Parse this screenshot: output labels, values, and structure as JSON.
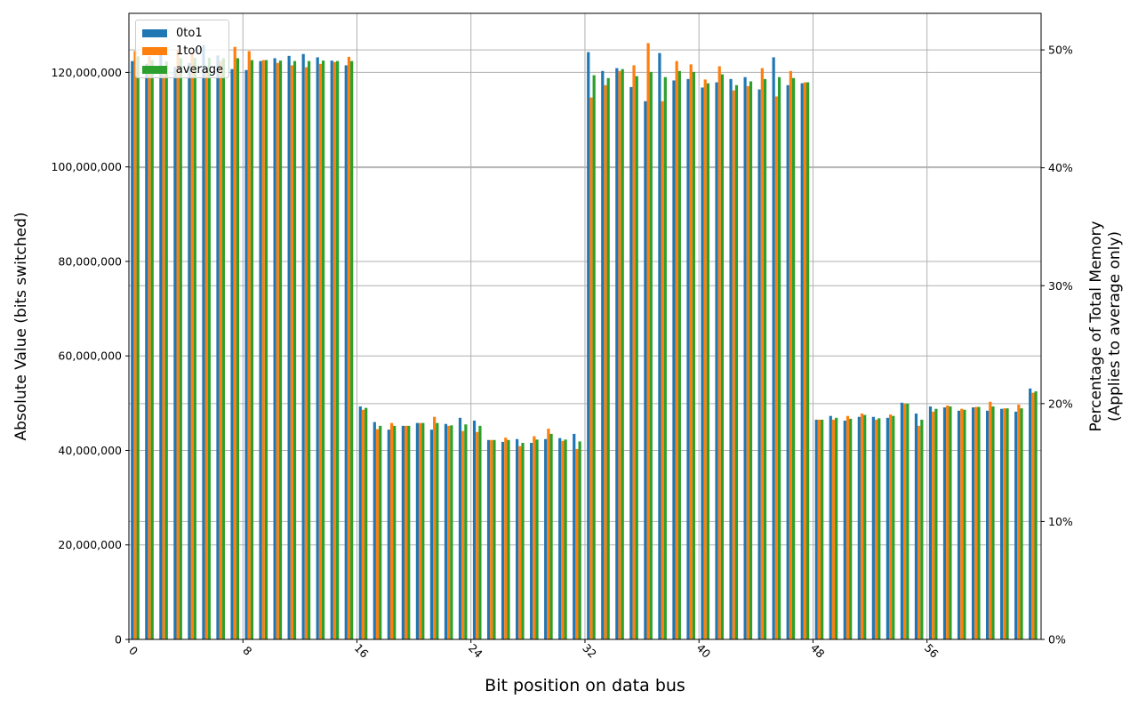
{
  "chart_data": {
    "type": "bar",
    "title": "",
    "xlabel": "Bit position on data bus",
    "ylabel": "Absolute Value (bits switched)",
    "ylabel_right": "Percentage of Total Memory\n(Applies to average only)",
    "ylabel_right_lines": [
      "Percentage of Total Memory",
      "(Applies to average only)"
    ],
    "ylim": [
      0,
      132500000
    ],
    "ylim_right_percent": [
      0,
      53.1
    ],
    "xticks": [
      0,
      8,
      16,
      24,
      32,
      40,
      48,
      56
    ],
    "xtick_labels": [
      "0",
      "8",
      "16",
      "24",
      "32",
      "40",
      "48",
      "56"
    ],
    "yticks": [
      0,
      20000000,
      40000000,
      60000000,
      80000000,
      100000000,
      120000000
    ],
    "ytick_labels": [
      "0",
      "20,000,000",
      "40,000,000",
      "60,000,000",
      "80,000,000",
      "100,000,000",
      "120,000,000"
    ],
    "yticks_right": [
      0,
      10,
      20,
      30,
      40,
      50
    ],
    "ytick_right_labels": [
      "0%",
      "10%",
      "20%",
      "30%",
      "40%",
      "50%"
    ],
    "grid": true,
    "legend_position": "upper left",
    "categories": [
      0,
      1,
      2,
      3,
      4,
      5,
      6,
      7,
      8,
      9,
      10,
      11,
      12,
      13,
      14,
      15,
      16,
      17,
      18,
      19,
      20,
      21,
      22,
      23,
      24,
      25,
      26,
      27,
      28,
      29,
      30,
      31,
      32,
      33,
      34,
      35,
      36,
      37,
      38,
      39,
      40,
      41,
      42,
      43,
      44,
      45,
      46,
      47,
      48,
      49,
      50,
      51,
      52,
      53,
      54,
      55,
      56,
      57,
      58,
      59,
      60,
      61,
      62,
      63
    ],
    "series": [
      {
        "name": "0to1",
        "color": "#1f77b4",
        "values": [
          122400000,
          121800000,
          124600000,
          121200000,
          122000000,
          125800000,
          123600000,
          120700000,
          120500000,
          122400000,
          123000000,
          123500000,
          123900000,
          123200000,
          122500000,
          121500000,
          49300000,
          46000000,
          44400000,
          45200000,
          45800000,
          44400000,
          45600000,
          46900000,
          46300000,
          42200000,
          41800000,
          42400000,
          41600000,
          42400000,
          42600000,
          43500000,
          124300000,
          120300000,
          120900000,
          116900000,
          113900000,
          124100000,
          118300000,
          118600000,
          116800000,
          117900000,
          118600000,
          119000000,
          116400000,
          123200000,
          117300000,
          117700000,
          46500000,
          47300000,
          46300000,
          47100000,
          47100000,
          46900000,
          50100000,
          47800000,
          49300000,
          49100000,
          48400000,
          49100000,
          48400000,
          48800000,
          48200000,
          53100000
        ]
      },
      {
        "name": "1to0",
        "color": "#ff7f0e",
        "values": [
          124500000,
          123400000,
          120000000,
          124800000,
          124200000,
          120400000,
          122400000,
          125400000,
          124500000,
          122600000,
          122000000,
          121500000,
          121100000,
          121800000,
          122200000,
          123300000,
          48600000,
          44500000,
          45800000,
          45200000,
          45800000,
          47100000,
          45200000,
          44100000,
          43900000,
          42200000,
          42700000,
          40900000,
          43000000,
          44600000,
          42000000,
          40300000,
          114700000,
          117300000,
          120300000,
          121500000,
          126200000,
          113900000,
          122400000,
          121700000,
          118500000,
          121300000,
          116200000,
          117100000,
          120900000,
          114900000,
          120300000,
          117900000,
          46500000,
          46500000,
          47300000,
          47800000,
          46500000,
          47600000,
          49900000,
          45200000,
          48200000,
          49500000,
          48800000,
          49200000,
          50300000,
          48900000,
          49700000,
          52200000
        ]
      },
      {
        "name": "average",
        "color": "#2ca02c",
        "values": [
          123400000,
          122600000,
          122300000,
          123000000,
          123100000,
          123100000,
          123000000,
          123000000,
          122600000,
          122600000,
          122500000,
          122400000,
          122400000,
          122500000,
          122400000,
          122400000,
          49000000,
          45200000,
          45200000,
          45200000,
          45800000,
          45800000,
          45300000,
          45500000,
          45200000,
          42200000,
          42200000,
          41600000,
          42300000,
          43500000,
          42300000,
          41900000,
          119400000,
          118800000,
          120700000,
          119200000,
          120100000,
          119000000,
          120300000,
          120100000,
          117700000,
          119600000,
          117300000,
          118100000,
          118600000,
          119000000,
          118800000,
          117900000,
          46500000,
          46900000,
          46700000,
          47500000,
          46800000,
          47300000,
          49900000,
          46500000,
          48800000,
          49300000,
          48600000,
          49200000,
          49300000,
          48900000,
          48900000,
          52500000
        ]
      }
    ]
  },
  "legend": {
    "items": [
      {
        "label": "0to1",
        "color": "#1f77b4"
      },
      {
        "label": "1to0",
        "color": "#ff7f0e"
      },
      {
        "label": "average",
        "color": "#2ca02c"
      }
    ]
  },
  "colors": {
    "grid": "#b0b0b0",
    "axis": "#000000",
    "background": "#ffffff"
  }
}
